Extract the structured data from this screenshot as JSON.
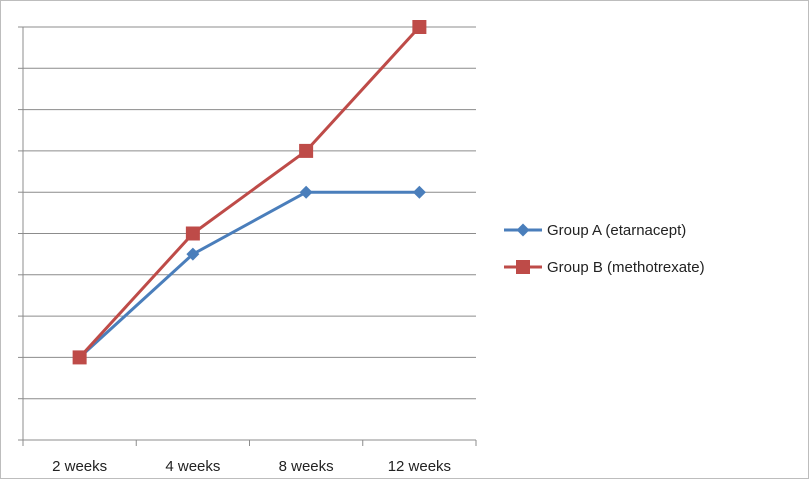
{
  "chart_data": {
    "type": "line",
    "categories": [
      "2 weeks",
      "4 weeks",
      "8 weeks",
      "12 weeks"
    ],
    "series": [
      {
        "name": "Group A (etarnacept)",
        "values": [
          2,
          4.5,
          6,
          6
        ],
        "color": "#4a7ebb",
        "marker": "diamond"
      },
      {
        "name": "Group B (methotrexate)",
        "values": [
          2,
          5,
          7,
          10
        ],
        "color": "#be4b48",
        "marker": "square"
      }
    ],
    "ylim": [
      0,
      10
    ],
    "y_major_step": 1,
    "grid": true,
    "legend_position": "right"
  }
}
